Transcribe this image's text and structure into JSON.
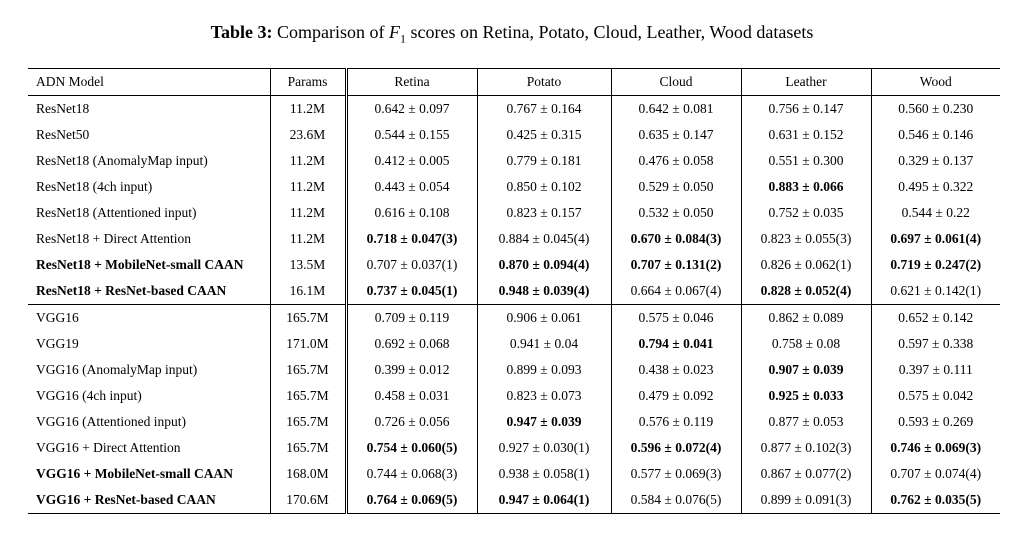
{
  "title": {
    "label": "Table 3:",
    "text_before": "Comparison of",
    "symbol": "F",
    "subscript": "1",
    "text_after": "scores on Retina, Potato, Cloud, Leather, Wood datasets"
  },
  "table": {
    "header": [
      "ADN Model",
      "Params",
      "Retina",
      "Potato",
      "Cloud",
      "Leather",
      "Wood"
    ],
    "rows": [
      [
        "ResNet18",
        "11.2M",
        "0.642 ± 0.097",
        "0.767 ± 0.164",
        "0.642 ± 0.081",
        "0.756 ± 0.147",
        "0.560 ± 0.230"
      ],
      [
        "ResNet50",
        "23.6M",
        "0.544 ± 0.155",
        "0.425 ± 0.315",
        "0.635 ± 0.147",
        "0.631 ± 0.152",
        "0.546 ± 0.146"
      ],
      [
        "ResNet18 (AnomalyMap input)",
        "11.2M",
        "0.412 ± 0.005",
        "0.779 ± 0.181",
        "0.476 ± 0.058",
        "0.551 ± 0.300",
        "0.329 ± 0.137"
      ],
      [
        "ResNet18 (4ch input)",
        "11.2M",
        "0.443 ± 0.054",
        "0.850 ± 0.102",
        "0.529 ± 0.050",
        "0.883 ± 0.066",
        "0.495 ± 0.322"
      ],
      [
        "ResNet18 (Attentioned input)",
        "11.2M",
        "0.616 ± 0.108",
        "0.823 ± 0.157",
        "0.532 ± 0.050",
        "0.752 ± 0.035",
        "0.544 ± 0.22"
      ],
      [
        "ResNet18 + Direct Attention",
        "11.2M",
        "0.718 ± 0.047(3)",
        "0.884 ± 0.045(4)",
        "0.670 ± 0.084(3)",
        "0.823 ± 0.055(3)",
        "0.697 ± 0.061(4)"
      ],
      [
        "ResNet18 + MobileNet-small CAAN",
        "13.5M",
        "0.707 ± 0.037(1)",
        "0.870 ± 0.094(4)",
        "0.707 ± 0.131(2)",
        "0.826 ± 0.062(1)",
        "0.719 ± 0.247(2)"
      ],
      [
        "ResNet18 + ResNet-based CAAN",
        "16.1M",
        "0.737 ± 0.045(1)",
        "0.948 ± 0.039(4)",
        "0.664 ± 0.067(4)",
        "0.828 ± 0.052(4)",
        "0.621 ± 0.142(1)"
      ],
      [
        "VGG16",
        "165.7M",
        "0.709 ± 0.119",
        "0.906 ± 0.061",
        "0.575 ± 0.046",
        "0.862 ± 0.089",
        "0.652 ± 0.142"
      ],
      [
        "VGG19",
        "171.0M",
        "0.692 ± 0.068",
        "0.941 ± 0.04",
        "0.794 ± 0.041",
        "0.758 ± 0.08",
        "0.597 ± 0.338"
      ],
      [
        "VGG16 (AnomalyMap input)",
        "165.7M",
        "0.399 ± 0.012",
        "0.899 ± 0.093",
        "0.438 ± 0.023",
        "0.907 ± 0.039",
        "0.397 ± 0.111"
      ],
      [
        "VGG16 (4ch input)",
        "165.7M",
        "0.458 ± 0.031",
        "0.823 ± 0.073",
        "0.479 ± 0.092",
        "0.925 ± 0.033",
        "0.575 ± 0.042"
      ],
      [
        "VGG16 (Attentioned input)",
        "165.7M",
        "0.726 ± 0.056",
        "0.947 ± 0.039",
        "0.576 ± 0.119",
        "0.877 ± 0.053",
        "0.593 ± 0.269"
      ],
      [
        "VGG16 + Direct Attention",
        "165.7M",
        "0.754 ± 0.060(5)",
        "0.927 ± 0.030(1)",
        "0.596 ± 0.072(4)",
        "0.877 ± 0.102(3)",
        "0.746 ± 0.069(3)"
      ],
      [
        "VGG16 + MobileNet-small CAAN",
        "168.0M",
        "0.744 ± 0.068(3)",
        "0.938 ± 0.058(1)",
        "0.577 ± 0.069(3)",
        "0.867 ± 0.077(2)",
        "0.707 ± 0.074(4)"
      ],
      [
        "VGG16 + ResNet-based CAAN",
        "170.6M",
        "0.764 ± 0.069(5)",
        "0.947 ± 0.064(1)",
        "0.584 ± 0.076(5)",
        "0.899 ± 0.091(3)",
        "0.762 ± 0.035(5)"
      ]
    ]
  }
}
